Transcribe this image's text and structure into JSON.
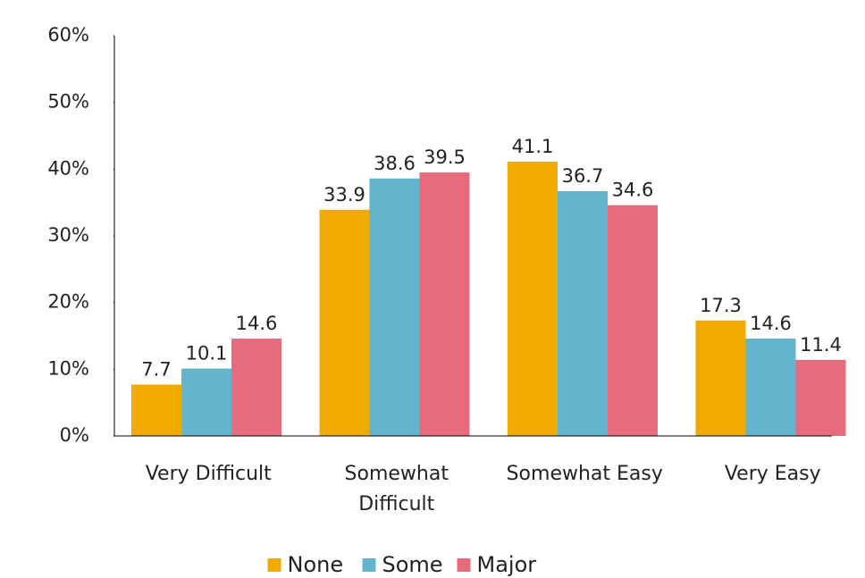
{
  "chart_data": {
    "type": "bar",
    "categories": [
      "Very Difficult",
      "Somewhat Difficult",
      "Somewhat Easy",
      "Very Easy"
    ],
    "series": [
      {
        "name": "None",
        "color": "#f0aa00",
        "values": [
          7.7,
          33.9,
          41.1,
          17.3
        ]
      },
      {
        "name": "Some",
        "color": "#62b5cd",
        "values": [
          10.1,
          38.6,
          36.7,
          14.6
        ]
      },
      {
        "name": "Major",
        "color": "#e86b7d",
        "values": [
          14.6,
          39.5,
          34.6,
          11.4
        ]
      }
    ],
    "ylim": [
      0,
      60
    ],
    "yticks": [
      {
        "value": 0,
        "label": "0%"
      },
      {
        "value": 10,
        "label": "10%"
      },
      {
        "value": 20,
        "label": "20%"
      },
      {
        "value": 30,
        "label": "30%"
      },
      {
        "value": 40,
        "label": "40%"
      },
      {
        "value": 50,
        "label": "50%"
      },
      {
        "value": 60,
        "label": "60%"
      }
    ],
    "grid": false,
    "legend": "bottom"
  }
}
